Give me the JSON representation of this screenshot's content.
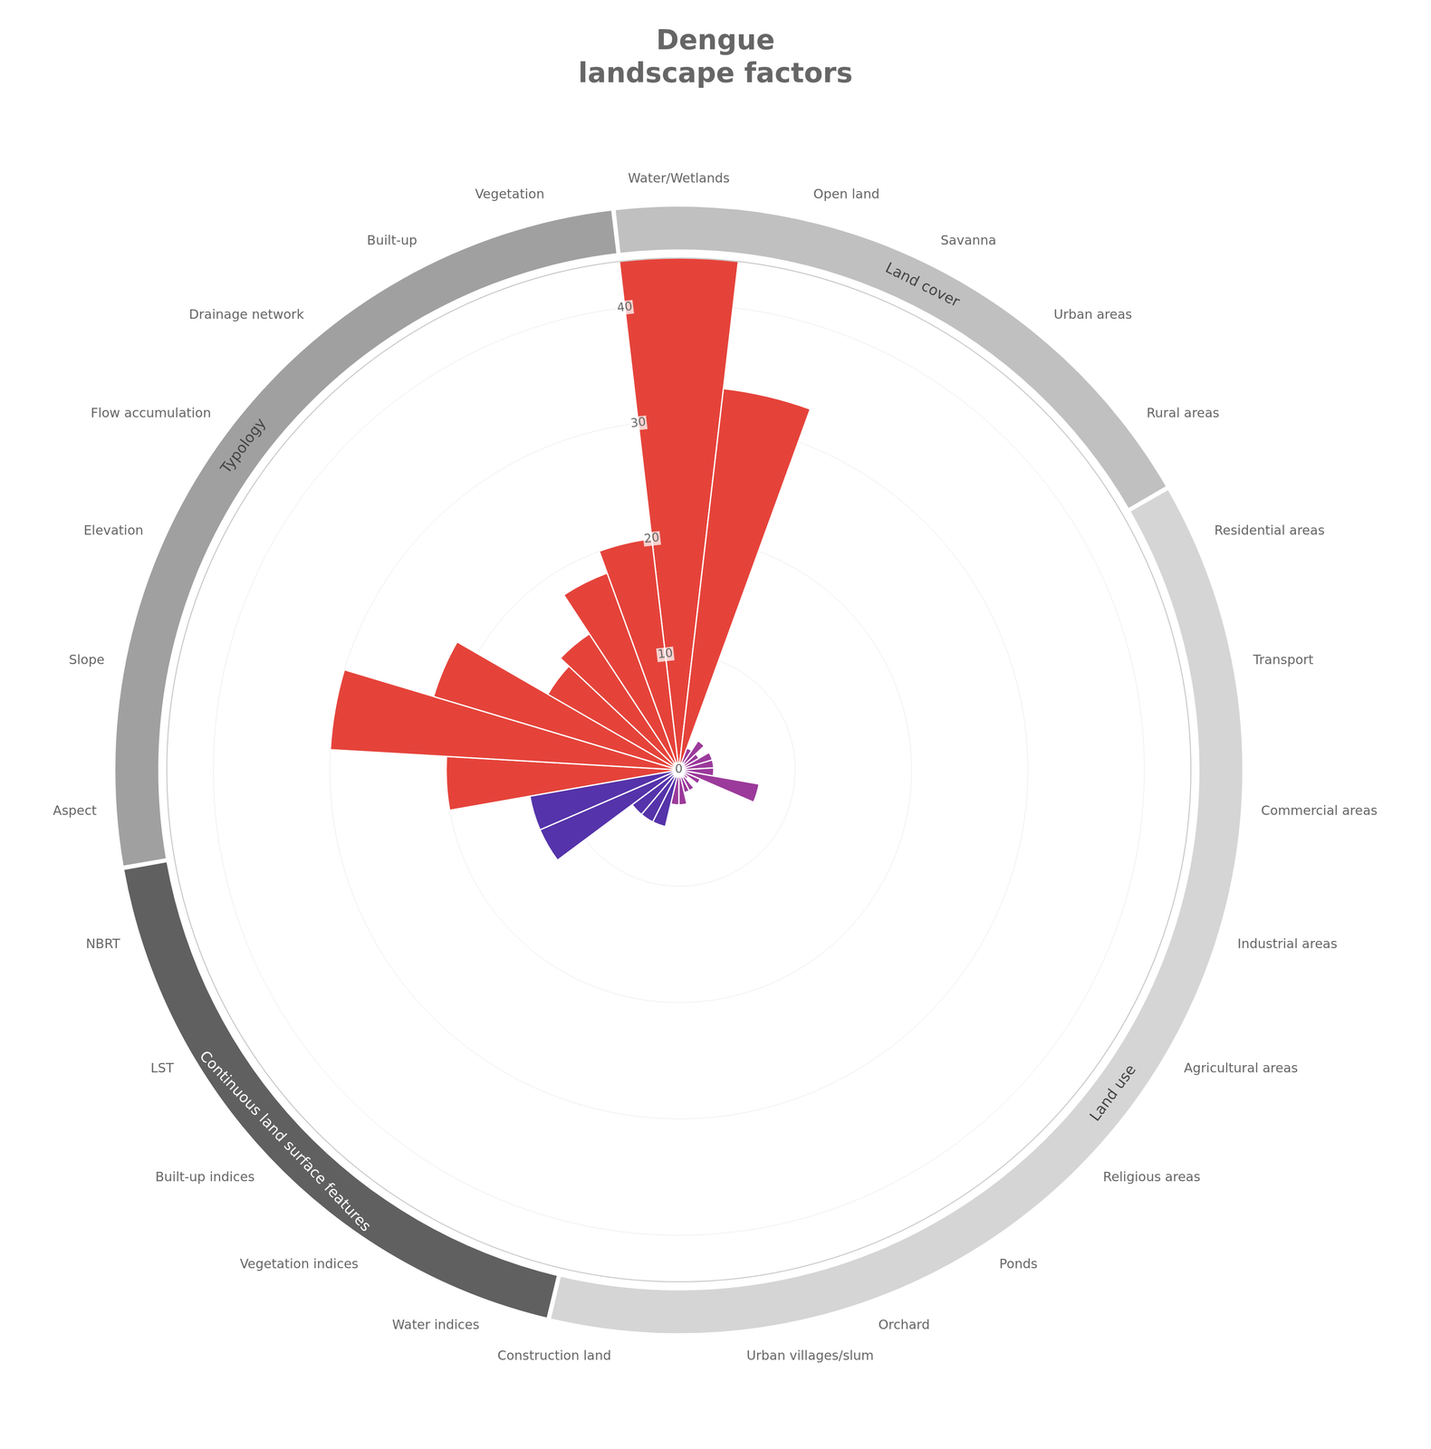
{
  "chart_data": {
    "type": "polarArea",
    "title": "Dengue\nlandscape factors",
    "categories": [
      "Water/Wetlands",
      "Open land",
      "Savanna",
      "Urban areas",
      "Rural areas",
      "Residential areas",
      "Transport",
      "Commercial areas",
      "Industrial areas",
      "Agricultural areas",
      "Religious areas",
      "Ponds",
      "Orchard",
      "Urban villages/slum",
      "Construction land",
      "Water indices",
      "Vegetation indices",
      "Built-up indices",
      "LST",
      "NBRT",
      "Aspect",
      "Slope",
      "Elevation",
      "Flow accumulation",
      "Drainage network",
      "Built-up",
      "Vegetation"
    ],
    "values": [
      44,
      33,
      2,
      3,
      2,
      3,
      3,
      3,
      7,
      2,
      1,
      2,
      2,
      3,
      3,
      5,
      5,
      5,
      13,
      13,
      20,
      30,
      22,
      13,
      14,
      18,
      20
    ],
    "colors": [
      "#E5433A",
      "#E5433A",
      "#9B3A9B",
      "#9B3A9B",
      "#9B3A9B",
      "#9B3A9B",
      "#9B3A9B",
      "#9B3A9B",
      "#9B3A9B",
      "#9B3A9B",
      "#9B3A9B",
      "#9B3A9B",
      "#9B3A9B",
      "#9B3A9B",
      "#9B3A9B",
      "#5533AA",
      "#5533AA",
      "#5533AA",
      "#5533AA",
      "#5533AA",
      "#E5433A",
      "#E5433A",
      "#E5433A",
      "#E5433A",
      "#E5433A",
      "#E5433A",
      "#E5433A"
    ],
    "groups": [
      {
        "label": "Land cover",
        "start": 0,
        "end": 4,
        "color": "#C0C0C0"
      },
      {
        "label": "Land use",
        "start": 5,
        "end": 14,
        "color": "#D5D5D5"
      },
      {
        "label": "Continuous land surface features",
        "start": 15,
        "end": 19,
        "color": "#606060"
      },
      {
        "label": "Typology",
        "start": 20,
        "end": 26,
        "color": "#A0A0A0"
      }
    ],
    "ylim": [
      0,
      44
    ],
    "yticks": [
      0,
      10,
      20,
      30,
      40
    ],
    "grid": true
  }
}
